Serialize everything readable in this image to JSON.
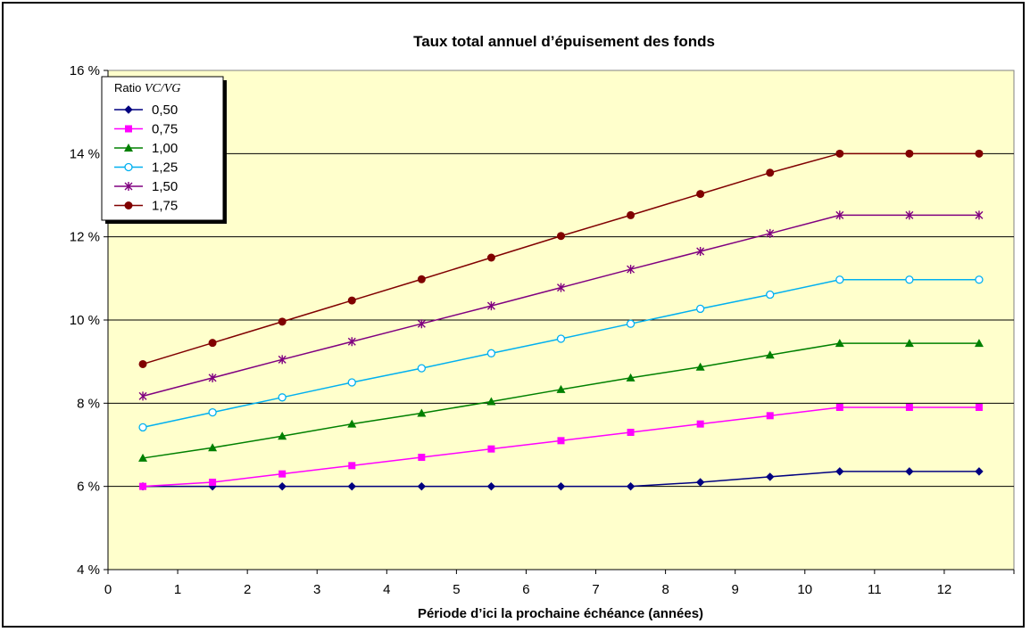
{
  "chart_data": {
    "type": "line",
    "title": "Taux total annuel d’épuisement des fonds",
    "xlabel": "Période d’ici la prochaine échéance (années)",
    "ylabel": "",
    "xlim": [
      0,
      13
    ],
    "ylim": [
      4,
      16
    ],
    "x_ticks": [
      "0",
      "1",
      "2",
      "3",
      "4",
      "5",
      "6",
      "7",
      "8",
      "9",
      "10",
      "11",
      "12"
    ],
    "y_ticks": [
      "4 %",
      "6 %",
      "8 %",
      "10 %",
      "12 %",
      "14 %",
      "16 %"
    ],
    "grid": "horizontal",
    "legend": {
      "title_prefix": "Ratio ",
      "title_italic": "VC/VG",
      "placement": "top-left"
    },
    "x": [
      0.5,
      1.5,
      2.5,
      3.5,
      4.5,
      5.5,
      6.5,
      7.5,
      8.5,
      9.5,
      10.5,
      11.5,
      12.5
    ],
    "series": [
      {
        "name": "0,50",
        "color": "#000080",
        "marker": "diamond",
        "values": [
          6.0,
          6.0,
          6.0,
          6.0,
          6.0,
          6.0,
          6.0,
          6.0,
          6.1,
          6.23,
          6.36,
          6.36,
          6.36
        ]
      },
      {
        "name": "0,75",
        "color": "#FF00FF",
        "marker": "square",
        "values": [
          6.0,
          6.1,
          6.3,
          6.5,
          6.7,
          6.9,
          7.1,
          7.3,
          7.5,
          7.7,
          7.9,
          7.9,
          7.9
        ]
      },
      {
        "name": "1,00",
        "color": "#008000",
        "marker": "triangle",
        "values": [
          6.68,
          6.93,
          7.21,
          7.5,
          7.76,
          8.04,
          8.33,
          8.61,
          8.87,
          9.16,
          9.44,
          9.44,
          9.44
        ]
      },
      {
        "name": "1,25",
        "color": "#00B0F0",
        "marker": "circle-open",
        "values": [
          7.42,
          7.78,
          8.14,
          8.5,
          8.84,
          9.2,
          9.55,
          9.91,
          10.27,
          10.61,
          10.97,
          10.97,
          10.97
        ]
      },
      {
        "name": "1,50",
        "color": "#800080",
        "marker": "star",
        "values": [
          8.17,
          8.61,
          9.05,
          9.48,
          9.91,
          10.34,
          10.78,
          11.22,
          11.65,
          12.08,
          12.52,
          12.52,
          12.52
        ]
      },
      {
        "name": "1,75",
        "color": "#800000",
        "marker": "circle",
        "values": [
          8.94,
          9.45,
          9.96,
          10.47,
          10.98,
          11.5,
          12.02,
          12.52,
          13.03,
          13.54,
          14.0,
          14.0,
          14.0
        ]
      }
    ]
  }
}
